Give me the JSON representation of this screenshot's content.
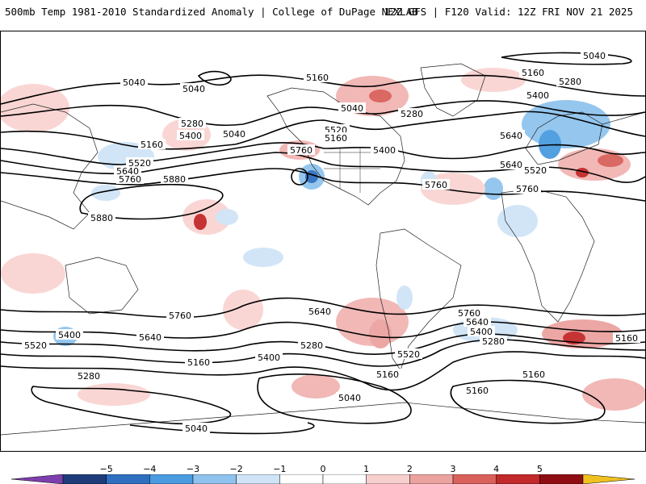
{
  "header": {
    "title_left": "500mb Temp 1981-2010 Standardized Anomaly | College of DuPage NEXLAB",
    "title_right": "12Z GFS | F120 Valid: 12Z FRI NOV 21 2025"
  },
  "map": {
    "projection": "global equirectangular",
    "contour_field": "500mb height",
    "contour_labels": [
      "5040",
      "5040",
      "5040",
      "5160",
      "5160",
      "5280",
      "5400",
      "5520",
      "5640",
      "5760",
      "5880",
      "5880",
      "5760",
      "5640",
      "5520",
      "5400",
      "5280",
      "5160",
      "5040",
      "5040",
      "5160",
      "5280",
      "5400",
      "5520",
      "5640",
      "5760",
      "5760",
      "5640",
      "5400",
      "5280",
      "5160",
      "5160",
      "5040",
      "5160",
      "5280",
      "5400",
      "5520",
      "5640",
      "5760",
      "5160",
      "5040",
      "5280",
      "5400",
      "5640",
      "5760",
      "5520",
      "5160"
    ],
    "colors": {
      "frame": "#000000",
      "contour": "#000000",
      "coastline": "#222222",
      "land_background": "#ffffff"
    }
  },
  "colorbar": {
    "ticks": [
      "−5",
      "−4",
      "−3",
      "−2",
      "−1",
      "0",
      "1",
      "2",
      "3",
      "4",
      "5"
    ],
    "colors": [
      "#7e3fae",
      "#1f3c7a",
      "#2f6fbf",
      "#4a9be0",
      "#8fc3ee",
      "#cfe4f7",
      "#ffffff",
      "#ffffff",
      "#f7d0ce",
      "#eba3a0",
      "#d9605b",
      "#c2292a",
      "#8e0d12",
      "#f0c020"
    ]
  }
}
